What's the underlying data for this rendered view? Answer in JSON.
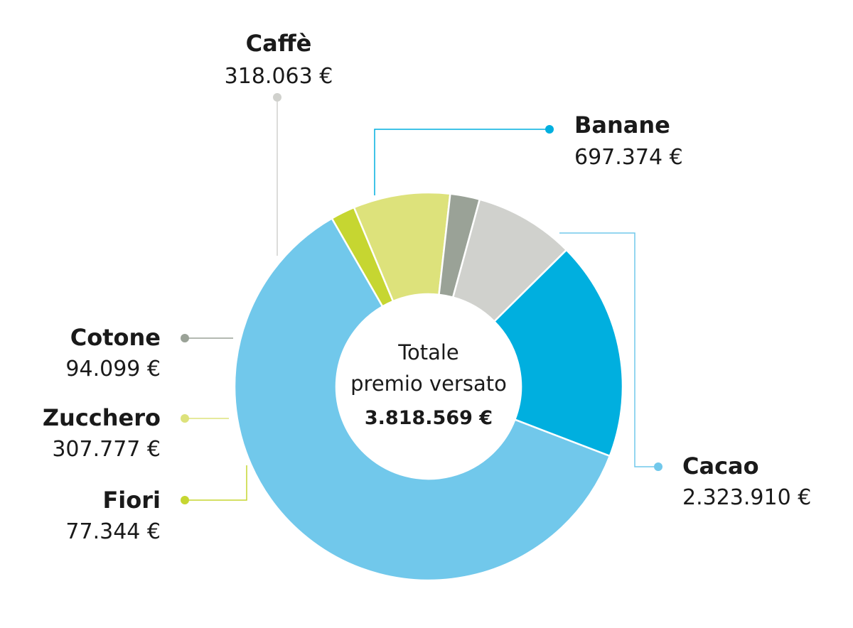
{
  "chart_data": {
    "type": "pie",
    "donut": true,
    "center": {
      "line1": "Totale",
      "line2": "premio versato",
      "total": "3.818.569 €"
    },
    "series": [
      {
        "label": "Cacao",
        "value": 2323910,
        "value_text": "2.323.910 €",
        "color": "#71c8eb"
      },
      {
        "label": "Fiori",
        "value": 77344,
        "value_text": "77.344 €",
        "color": "#c6d631"
      },
      {
        "label": "Zucchero",
        "value": 307777,
        "value_text": "307.777 €",
        "color": "#dde27b"
      },
      {
        "label": "Cotone",
        "value": 94099,
        "value_text": "94.099 €",
        "color": "#9aa297"
      },
      {
        "label": "Caffè",
        "value": 318063,
        "value_text": "318.063 €",
        "color": "#d0d1cd"
      },
      {
        "label": "Banane",
        "value": 697374,
        "value_text": "697.374 €",
        "color": "#00afdf"
      }
    ]
  }
}
